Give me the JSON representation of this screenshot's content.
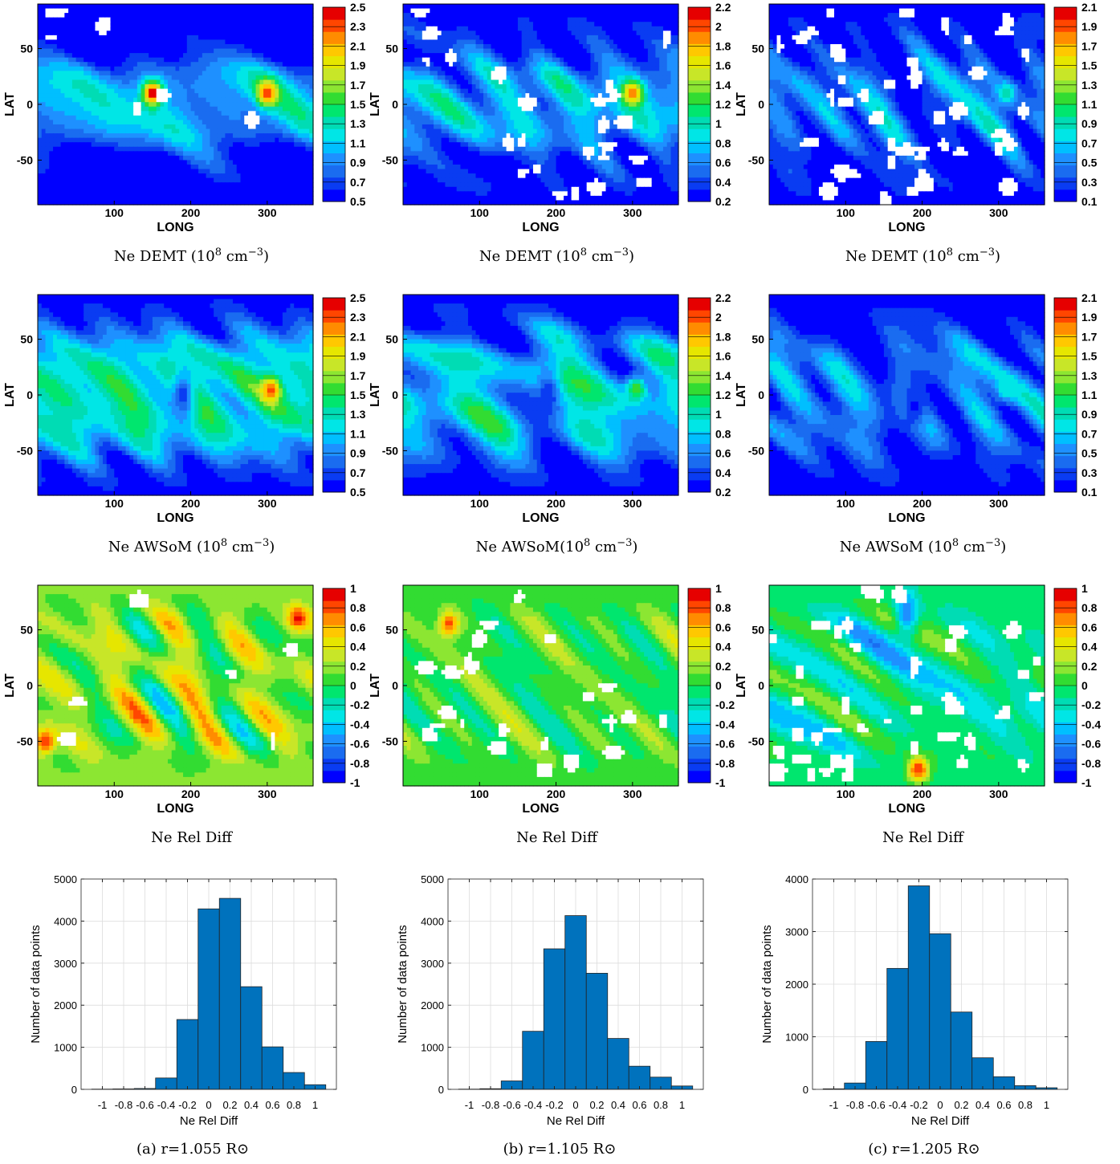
{
  "figure": {
    "column_captions": [
      "(a) r=1.055 R⊙",
      "(b) r=1.105 R⊙",
      "(c) r=1.205 R⊙"
    ]
  },
  "colors": {
    "colormap": [
      "#0000ff",
      "#0a3cf2",
      "#1a6cf0",
      "#1e90ff",
      "#00bfff",
      "#00e6e6",
      "#00dcb4",
      "#00e66e",
      "#32dc32",
      "#8ce632",
      "#c8e628",
      "#e6e600",
      "#ffc800",
      "#ff8c00",
      "#ff4600",
      "#e60000"
    ],
    "hist_bar": "#0072bd",
    "hist_edge": "#222222",
    "grid": "#dcdcdc",
    "missing": "#ffffff"
  },
  "chart_data": [
    {
      "type": "heatmap",
      "quantity": "Ne DEMT",
      "caption": "Ne DEMT (10",
      "caption_sup": "8",
      "caption_unit": " cm",
      "caption_sup2": "−3",
      "caption_close": ")",
      "xlabel": "LONG",
      "ylabel": "LAT",
      "xticks": [
        "100",
        "200",
        "300"
      ],
      "yticks": [
        "50",
        "0",
        "-50"
      ],
      "xlim": [
        0,
        360
      ],
      "ylim": [
        -90,
        90
      ],
      "colorbar": {
        "ticks": [
          "2.5",
          "2.3",
          "2.1",
          "1.9",
          "1.7",
          "1.5",
          "1.3",
          "1.1",
          "0.9",
          "0.7",
          "0.5"
        ],
        "min": 0.5,
        "max": 2.5
      },
      "field": {
        "base": 0.5,
        "mid": 1.05,
        "belt": 40,
        "hotspots": [
          [
            150,
            10,
            2.5
          ],
          [
            300,
            10,
            2.4
          ]
        ],
        "gaps": "sparse"
      }
    },
    {
      "type": "heatmap",
      "quantity": "Ne DEMT",
      "caption": "Ne DEMT (10",
      "caption_sup": "8",
      "caption_unit": " cm",
      "caption_sup2": "−3",
      "caption_close": ")",
      "xlabel": "LONG",
      "ylabel": "LAT",
      "xticks": [
        "100",
        "200",
        "300"
      ],
      "yticks": [
        "50",
        "0",
        "-50"
      ],
      "xlim": [
        0,
        360
      ],
      "ylim": [
        -90,
        90
      ],
      "colorbar": {
        "ticks": [
          "2.2",
          "2",
          "1.8",
          "1.6",
          "1.4",
          "1.2",
          "1",
          "0.8",
          "0.6",
          "0.4",
          "0.2"
        ],
        "min": 0.2,
        "max": 2.2
      },
      "field": {
        "base": 0.3,
        "mid": 0.75,
        "belt": 40,
        "hotspots": [
          [
            300,
            10,
            2.0
          ]
        ],
        "gaps": "moderate"
      }
    },
    {
      "type": "heatmap",
      "quantity": "Ne DEMT",
      "caption": "Ne DEMT (10",
      "caption_sup": "8",
      "caption_unit": " cm",
      "caption_sup2": "−3",
      "caption_close": ")",
      "xlabel": "LONG",
      "ylabel": "LAT",
      "xticks": [
        "100",
        "200",
        "300"
      ],
      "yticks": [
        "50",
        "0",
        "-50"
      ],
      "xlim": [
        0,
        360
      ],
      "ylim": [
        -90,
        90
      ],
      "colorbar": {
        "ticks": [
          "2.1",
          "1.9",
          "1.7",
          "1.5",
          "1.3",
          "1.1",
          "0.9",
          "0.7",
          "0.5",
          "0.3",
          "0.1"
        ],
        "min": 0.1,
        "max": 2.1
      },
      "field": {
        "base": 0.2,
        "mid": 0.45,
        "belt": 40,
        "hotspots": [
          [
            310,
            10,
            0.9
          ]
        ],
        "gaps": "dense"
      }
    },
    {
      "type": "heatmap",
      "quantity": "Ne AWSoM",
      "caption": "Ne AWSoM (10",
      "caption_sup": "8",
      "caption_unit": " cm",
      "caption_sup2": "−3",
      "caption_close": ")",
      "xlabel": "LONG",
      "ylabel": "LAT",
      "xticks": [
        "100",
        "200",
        "300"
      ],
      "yticks": [
        "50",
        "0",
        "-50"
      ],
      "xlim": [
        0,
        360
      ],
      "ylim": [
        -90,
        90
      ],
      "colorbar": {
        "ticks": [
          "2.5",
          "2.3",
          "2.1",
          "1.9",
          "1.7",
          "1.5",
          "1.3",
          "1.1",
          "0.9",
          "0.7",
          "0.5"
        ],
        "min": 0.5,
        "max": 2.5
      },
      "field": {
        "base": 0.6,
        "mid": 1.3,
        "belt": 55,
        "hotspots": [
          [
            305,
            5,
            2.3
          ]
        ],
        "lows": [
          [
            190,
            0,
            0.7
          ]
        ],
        "gaps": "none"
      }
    },
    {
      "type": "heatmap",
      "quantity": "Ne AWSoM",
      "caption": "Ne AWSoM(10",
      "caption_sup": "8",
      "caption_unit": " cm",
      "caption_sup2": "−3",
      "caption_close": ")",
      "xlabel": "LONG",
      "ylabel": "LAT",
      "xticks": [
        "100",
        "200",
        "300"
      ],
      "yticks": [
        "50",
        "0",
        "-50"
      ],
      "xlim": [
        0,
        360
      ],
      "ylim": [
        -90,
        90
      ],
      "colorbar": {
        "ticks": [
          "2.2",
          "2",
          "1.8",
          "1.6",
          "1.4",
          "1.2",
          "1",
          "0.8",
          "0.6",
          "0.4",
          "0.2"
        ],
        "min": 0.2,
        "max": 2.2
      },
      "field": {
        "base": 0.3,
        "mid": 0.8,
        "belt": 55,
        "hotspots": [
          [
            305,
            5,
            1.3
          ]
        ],
        "lows": [
          [
            190,
            0,
            0.35
          ]
        ],
        "gaps": "none"
      }
    },
    {
      "type": "heatmap",
      "quantity": "Ne AWSoM",
      "caption": "Ne AWSoM (10",
      "caption_sup": "8",
      "caption_unit": " cm",
      "caption_sup2": "−3",
      "caption_close": ")",
      "xlabel": "LONG",
      "ylabel": "LAT",
      "xticks": [
        "100",
        "200",
        "300"
      ],
      "yticks": [
        "50",
        "0",
        "-50"
      ],
      "xlim": [
        0,
        360
      ],
      "ylim": [
        -90,
        90
      ],
      "colorbar": {
        "ticks": [
          "2.1",
          "1.9",
          "1.7",
          "1.5",
          "1.3",
          "1.1",
          "0.9",
          "0.7",
          "0.5",
          "0.3",
          "0.1"
        ],
        "min": 0.1,
        "max": 2.1
      },
      "field": {
        "base": 0.2,
        "mid": 0.45,
        "belt": 50,
        "hotspots": [
          [
            310,
            5,
            0.85
          ]
        ],
        "lows": [
          [
            190,
            -10,
            0.2
          ]
        ],
        "gaps": "none"
      }
    },
    {
      "type": "heatmap",
      "quantity": "Ne Rel Diff",
      "caption": "Ne Rel Diff",
      "xlabel": "LONG",
      "ylabel": "LAT",
      "xticks": [
        "100",
        "200",
        "300"
      ],
      "yticks": [
        "50",
        "0",
        "-50"
      ],
      "xlim": [
        0,
        360
      ],
      "ylim": [
        -90,
        90
      ],
      "colorbar": {
        "ticks": [
          "1",
          "0.8",
          "0.6",
          "0.4",
          "0.2",
          "0",
          "-0.2",
          "-0.4",
          "-0.6",
          "-0.8",
          "-1"
        ],
        "min": -1,
        "max": 1
      },
      "field": {
        "base": 0.15,
        "mid": 0.2,
        "belt": 60,
        "hotspots": [
          [
            10,
            -50,
            0.9
          ],
          [
            340,
            60,
            0.9
          ]
        ],
        "gaps": "sparse"
      }
    },
    {
      "type": "heatmap",
      "quantity": "Ne Rel Diff",
      "caption": "Ne Rel Diff",
      "xlabel": "LONG",
      "ylabel": "LAT",
      "xticks": [
        "100",
        "200",
        "300"
      ],
      "yticks": [
        "50",
        "0",
        "-50"
      ],
      "xlim": [
        0,
        360
      ],
      "ylim": [
        -90,
        90
      ],
      "colorbar": {
        "ticks": [
          "1",
          "0.8",
          "0.6",
          "0.4",
          "0.2",
          "0",
          "-0.2",
          "-0.4",
          "-0.6",
          "-0.8",
          "-1"
        ],
        "min": -1,
        "max": 1
      },
      "field": {
        "base": 0.05,
        "mid": 0.05,
        "belt": 60,
        "hotspots": [
          [
            60,
            55,
            0.8
          ]
        ],
        "gaps": "moderate"
      }
    },
    {
      "type": "heatmap",
      "quantity": "Ne Rel Diff",
      "caption": "Ne Rel Diff",
      "xlabel": "LONG",
      "ylabel": "LAT",
      "xticks": [
        "100",
        "200",
        "300"
      ],
      "yticks": [
        "50",
        "0",
        "-50"
      ],
      "xlim": [
        0,
        360
      ],
      "ylim": [
        -90,
        90
      ],
      "colorbar": {
        "ticks": [
          "1",
          "0.8",
          "0.6",
          "0.4",
          "0.2",
          "0",
          "-0.2",
          "-0.4",
          "-0.6",
          "-0.8",
          "-1"
        ],
        "min": -1,
        "max": 1
      },
      "field": {
        "base": -0.05,
        "mid": -0.15,
        "belt": 60,
        "hotspots": [
          [
            195,
            -75,
            0.9
          ]
        ],
        "lows": [
          [
            180,
            65,
            -0.6
          ]
        ],
        "gaps": "dense"
      }
    },
    {
      "type": "bar",
      "caption": "(a) r=1.055 R⊙",
      "xlabel": "Ne Rel Diff",
      "ylabel": "Number of data points",
      "categories": [
        -1,
        -0.8,
        -0.6,
        -0.4,
        -0.2,
        0,
        0.2,
        0.4,
        0.6,
        0.8,
        1
      ],
      "values": [
        5,
        10,
        20,
        270,
        1660,
        4290,
        4540,
        2440,
        1010,
        400,
        110
      ],
      "bin_width": 0.2,
      "xlim": [
        -1.2,
        1.2
      ],
      "ylim": [
        0,
        5000
      ],
      "xticks": [
        "-1",
        "-0.8",
        "-0.6",
        "-0.4",
        "-0.2",
        "0",
        "0.2",
        "0.4",
        "0.6",
        "0.8",
        "1"
      ],
      "yticks": [
        "0",
        "1000",
        "2000",
        "3000",
        "4000",
        "5000"
      ],
      "grid": true
    },
    {
      "type": "bar",
      "caption": "(b) r=1.105 R⊙",
      "xlabel": "Ne Rel Diff",
      "ylabel": "Number of data points",
      "categories": [
        -1,
        -0.8,
        -0.6,
        -0.4,
        -0.2,
        0,
        0.2,
        0.4,
        0.6,
        0.8,
        1
      ],
      "values": [
        5,
        15,
        200,
        1380,
        3340,
        4130,
        2760,
        1210,
        550,
        290,
        80
      ],
      "bin_width": 0.2,
      "xlim": [
        -1.2,
        1.2
      ],
      "ylim": [
        0,
        5000
      ],
      "xticks": [
        "-1",
        "-0.8",
        "-0.6",
        "-0.4",
        "-0.2",
        "0",
        "0.2",
        "0.4",
        "0.6",
        "0.8",
        "1"
      ],
      "yticks": [
        "0",
        "1000",
        "2000",
        "3000",
        "4000",
        "5000"
      ],
      "grid": true
    },
    {
      "type": "bar",
      "caption": "(c) r=1.205 R⊙",
      "xlabel": "Ne Rel Diff",
      "ylabel": "Number of data points",
      "categories": [
        -1,
        -0.8,
        -0.6,
        -0.4,
        -0.2,
        0,
        0.2,
        0.4,
        0.6,
        0.8,
        1
      ],
      "values": [
        10,
        120,
        910,
        2300,
        3870,
        2960,
        1470,
        600,
        240,
        70,
        30
      ],
      "bin_width": 0.2,
      "xlim": [
        -1.2,
        1.2
      ],
      "ylim": [
        0,
        4000
      ],
      "xticks": [
        "-1",
        "-0.8",
        "-0.6",
        "-0.4",
        "-0.2",
        "0",
        "0.2",
        "0.4",
        "0.6",
        "0.8",
        "1"
      ],
      "yticks": [
        "0",
        "1000",
        "2000",
        "3000",
        "4000"
      ],
      "grid": true
    }
  ]
}
